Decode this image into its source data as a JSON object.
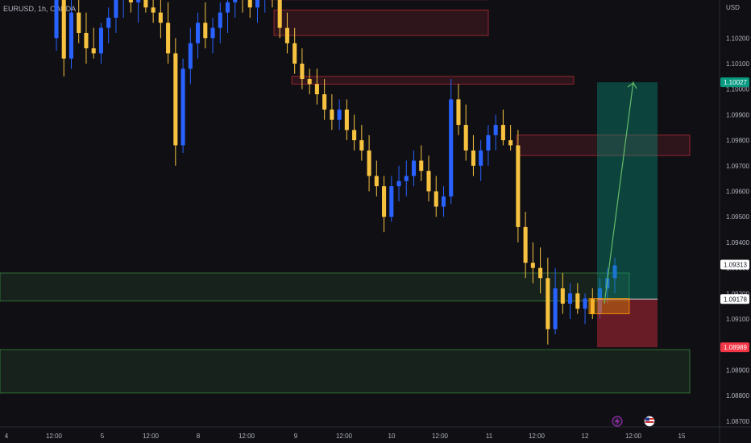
{
  "header": {
    "symbol": "EURUSD",
    "timeframe": "1h",
    "exchange": "OANDA",
    "currency": "USD"
  },
  "colors": {
    "background": "#0f0f14",
    "bull_candle": "#2962ff",
    "bear_candle": "#f7c23f",
    "demand_zone": "#4caf50",
    "supply_zone": "#f23645",
    "target_zone": "#089981",
    "stop_zone": "#b22833",
    "entry_box": "#ff9800"
  },
  "chart_data": {
    "type": "candlestick",
    "y_axis": {
      "ylim": [
        1.087,
        1.1045
      ],
      "tick_labels": [
        "1.10200",
        "1.10100",
        "1.10000",
        "1.09900",
        "1.09800",
        "1.09700",
        "1.09600",
        "1.09500",
        "1.09400",
        "1.09300",
        "1.09200",
        "1.09100",
        "1.08900",
        "1.08800",
        "1.08700"
      ]
    },
    "x_axis": {
      "tick_labels": [
        "4",
        "12:00",
        "5",
        "12:00",
        "8",
        "12:00",
        "9",
        "12:00",
        "10",
        "12:00",
        "11",
        "12:00",
        "12",
        "12:00",
        "15"
      ]
    },
    "price_tags": [
      {
        "label": "1.10027",
        "value": 1.10027,
        "kind": "target"
      },
      {
        "label": "1.09313",
        "value": 1.09313,
        "kind": "last"
      },
      {
        "label": "1.09178",
        "value": 1.09178,
        "kind": "entry"
      },
      {
        "label": "1.08989",
        "value": 1.08989,
        "kind": "stop"
      }
    ],
    "zones": [
      {
        "kind": "supply",
        "from": 1.1045,
        "to": 1.1035
      },
      {
        "kind": "supply",
        "from": 1.1031,
        "to": 1.1021
      },
      {
        "kind": "supply",
        "from": 1.1005,
        "to": 1.1002
      },
      {
        "kind": "supply",
        "from": 1.0982,
        "to": 1.0974
      },
      {
        "kind": "demand",
        "from": 1.0928,
        "to": 1.0917
      },
      {
        "kind": "demand",
        "from": 1.0898,
        "to": 1.0881
      }
    ],
    "position": {
      "entry": 1.09178,
      "target": 1.10027,
      "stop": 1.08989
    },
    "candles": [
      [
        1.102,
        1.105,
        1.1015,
        1.104
      ],
      [
        1.104,
        1.1045,
        1.1005,
        1.1012
      ],
      [
        1.1012,
        1.1035,
        1.1008,
        1.103
      ],
      [
        1.103,
        1.104,
        1.1018,
        1.1022
      ],
      [
        1.1022,
        1.103,
        1.101,
        1.1016
      ],
      [
        1.1016,
        1.1024,
        1.1012,
        1.1014
      ],
      [
        1.1014,
        1.1026,
        1.101,
        1.1024
      ],
      [
        1.1024,
        1.1032,
        1.1018,
        1.1028
      ],
      [
        1.1028,
        1.104,
        1.1022,
        1.1035
      ],
      [
        1.1035,
        1.1045,
        1.1028,
        1.104
      ],
      [
        1.104,
        1.1048,
        1.103,
        1.1034
      ],
      [
        1.1034,
        1.1042,
        1.1026,
        1.1038
      ],
      [
        1.1038,
        1.1045,
        1.103,
        1.1032
      ],
      [
        1.1032,
        1.1038,
        1.1026,
        1.103
      ],
      [
        1.103,
        1.1036,
        1.102,
        1.1026
      ],
      [
        1.1026,
        1.1034,
        1.101,
        1.1014
      ],
      [
        1.1014,
        1.102,
        1.097,
        1.0978
      ],
      [
        1.0978,
        1.1012,
        1.0975,
        1.1008
      ],
      [
        1.1008,
        1.1024,
        1.1002,
        1.1018
      ],
      [
        1.1018,
        1.103,
        1.1012,
        1.1026
      ],
      [
        1.1026,
        1.1034,
        1.1016,
        1.102
      ],
      [
        1.102,
        1.1028,
        1.1014,
        1.1024
      ],
      [
        1.1024,
        1.1034,
        1.1018,
        1.103
      ],
      [
        1.103,
        1.1038,
        1.1022,
        1.1034
      ],
      [
        1.1034,
        1.1042,
        1.1028,
        1.1038
      ],
      [
        1.1038,
        1.1046,
        1.103,
        1.1036
      ],
      [
        1.1036,
        1.1042,
        1.1028,
        1.1032
      ],
      [
        1.1032,
        1.104,
        1.1026,
        1.1038
      ],
      [
        1.1038,
        1.1044,
        1.103,
        1.104
      ],
      [
        1.104,
        1.1045,
        1.1032,
        1.1036
      ],
      [
        1.1036,
        1.1042,
        1.102,
        1.1024
      ],
      [
        1.1024,
        1.103,
        1.1014,
        1.1018
      ],
      [
        1.1018,
        1.1024,
        1.1006,
        1.101
      ],
      [
        1.101,
        1.1016,
        1.1,
        1.1004
      ],
      [
        1.1004,
        1.1008,
        1.0998,
        1.1002
      ],
      [
        1.1002,
        1.1008,
        1.0994,
        1.0998
      ],
      [
        1.0998,
        1.1004,
        1.0988,
        1.0992
      ],
      [
        1.0992,
        1.0998,
        1.0984,
        1.0988
      ],
      [
        1.0988,
        1.0996,
        1.0984,
        1.0992
      ],
      [
        1.0992,
        1.0996,
        1.098,
        1.0984
      ],
      [
        1.0984,
        1.099,
        1.0976,
        1.098
      ],
      [
        1.098,
        1.0986,
        1.0972,
        1.0976
      ],
      [
        1.0976,
        1.0982,
        1.096,
        1.0966
      ],
      [
        1.0966,
        1.0972,
        1.0958,
        1.0962
      ],
      [
        1.0962,
        1.0966,
        1.0944,
        1.095
      ],
      [
        1.095,
        1.0966,
        1.0948,
        1.0962
      ],
      [
        1.0962,
        1.097,
        1.0956,
        1.0964
      ],
      [
        1.0964,
        1.0972,
        1.0958,
        1.0966
      ],
      [
        1.0966,
        1.0976,
        1.0962,
        1.0972
      ],
      [
        1.0972,
        1.0978,
        1.0964,
        1.0968
      ],
      [
        1.0968,
        1.0974,
        1.0956,
        1.096
      ],
      [
        1.096,
        1.0966,
        1.095,
        1.0954
      ],
      [
        1.0954,
        1.0962,
        1.095,
        1.0958
      ],
      [
        1.0958,
        1.1004,
        1.0955,
        1.0996
      ],
      [
        1.0996,
        1.1002,
        1.0982,
        1.0986
      ],
      [
        1.0986,
        1.0994,
        1.0972,
        1.0976
      ],
      [
        1.0976,
        1.0982,
        1.0966,
        1.097
      ],
      [
        1.097,
        1.098,
        1.0964,
        1.0976
      ],
      [
        1.0976,
        1.0986,
        1.097,
        1.0982
      ],
      [
        1.0982,
        1.099,
        1.0976,
        1.0986
      ],
      [
        1.0986,
        1.0992,
        1.0978,
        1.098
      ],
      [
        1.098,
        1.0986,
        1.0976,
        1.0978
      ],
      [
        1.0978,
        1.0984,
        1.094,
        1.0946
      ],
      [
        1.0946,
        1.0952,
        1.0926,
        1.0932
      ],
      [
        1.0932,
        1.094,
        1.0924,
        1.093
      ],
      [
        1.093,
        1.0938,
        1.092,
        1.0926
      ],
      [
        1.0926,
        1.0934,
        1.09,
        1.0906
      ],
      [
        1.0906,
        1.093,
        1.0904,
        1.0922
      ],
      [
        1.0922,
        1.0928,
        1.0912,
        1.0916
      ],
      [
        1.0916,
        1.0924,
        1.091,
        1.092
      ],
      [
        1.092,
        1.0924,
        1.0912,
        1.0914
      ],
      [
        1.0914,
        1.092,
        1.0908,
        1.0918
      ],
      [
        1.0918,
        1.0922,
        1.091,
        1.0912
      ],
      [
        1.0912,
        1.0926,
        1.091,
        1.0922
      ],
      [
        1.0922,
        1.093,
        1.0916,
        1.0926
      ],
      [
        1.0926,
        1.0934,
        1.092,
        1.0931
      ]
    ]
  }
}
